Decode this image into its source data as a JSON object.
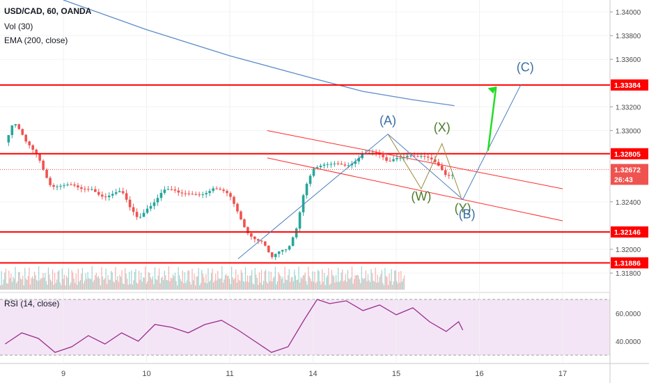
{
  "header": {
    "symbol_line": "USD/CAD, 60, OANDA",
    "vol_line": "Vol (30)",
    "ema_line": "EMA (200, close)",
    "rsi_line": "RSI (14, close)"
  },
  "chart_data": [
    {
      "type": "candlestick",
      "title": "USD/CAD, 60, OANDA",
      "y_range": [
        1.3166,
        1.341
      ],
      "y_ticks": [
        "1.34000",
        "1.33800",
        "1.33600",
        "1.33200",
        "1.33000",
        "1.32400",
        "1.32000",
        "1.31800"
      ],
      "x_ticks": [
        "9",
        "10",
        "11",
        "14",
        "15",
        "16",
        "17"
      ],
      "price_labels": [
        {
          "text": "1.33384",
          "value": 1.33384,
          "color": "#ff0000"
        },
        {
          "text": "1.32805",
          "value": 1.32805,
          "color": "#ff0000"
        },
        {
          "text": "1.32672",
          "value": 1.32672,
          "color": "#ef5350"
        },
        {
          "text": "26:43",
          "value": 1.3259,
          "color": "#ef5350"
        },
        {
          "text": "1.32146",
          "value": 1.32146,
          "color": "#ff0000"
        },
        {
          "text": "1.31886",
          "value": 1.31886,
          "color": "#ff0000"
        }
      ],
      "horizontal_levels": [
        1.33384,
        1.32805,
        1.32146,
        1.31886
      ],
      "current_price": 1.32672,
      "ema_200": [
        {
          "x": 0.0,
          "y": 1.341
        },
        {
          "x": 1.0,
          "y": 1.3385
        },
        {
          "x": 2.0,
          "y": 1.3363
        },
        {
          "x": 3.0,
          "y": 1.3344
        },
        {
          "x": 3.6,
          "y": 1.3333
        },
        {
          "x": 4.2,
          "y": 1.3326
        },
        {
          "x": 4.7,
          "y": 1.3321
        }
      ],
      "price_path": [
        {
          "x": -0.7,
          "y": 1.329
        },
        {
          "x": -0.6,
          "y": 1.3305
        },
        {
          "x": -0.45,
          "y": 1.3287
        },
        {
          "x": -0.3,
          "y": 1.328
        },
        {
          "x": -0.15,
          "y": 1.3257
        },
        {
          "x": 0.0,
          "y": 1.3252
        },
        {
          "x": 0.2,
          "y": 1.3248
        },
        {
          "x": 0.35,
          "y": 1.3254
        },
        {
          "x": 0.5,
          "y": 1.3247
        },
        {
          "x": 0.7,
          "y": 1.3245
        },
        {
          "x": 0.8,
          "y": 1.3232
        },
        {
          "x": 0.9,
          "y": 1.3226
        },
        {
          "x": 1.0,
          "y": 1.3238
        },
        {
          "x": 1.2,
          "y": 1.325
        },
        {
          "x": 1.4,
          "y": 1.3243
        },
        {
          "x": 1.6,
          "y": 1.325
        },
        {
          "x": 1.8,
          "y": 1.3252
        },
        {
          "x": 2.0,
          "y": 1.3241
        },
        {
          "x": 2.2,
          "y": 1.3218
        },
        {
          "x": 2.4,
          "y": 1.3208
        },
        {
          "x": 2.5,
          "y": 1.319
        },
        {
          "x": 2.7,
          "y": 1.3198
        },
        {
          "x": 2.8,
          "y": 1.322
        },
        {
          "x": 2.9,
          "y": 1.3256
        },
        {
          "x": 3.0,
          "y": 1.327
        },
        {
          "x": 3.2,
          "y": 1.3267
        },
        {
          "x": 3.4,
          "y": 1.3272
        },
        {
          "x": 3.6,
          "y": 1.3284
        },
        {
          "x": 3.75,
          "y": 1.3278
        },
        {
          "x": 3.9,
          "y": 1.327
        },
        {
          "x": 4.0,
          "y": 1.3278
        },
        {
          "x": 4.15,
          "y": 1.3284
        },
        {
          "x": 4.3,
          "y": 1.3278
        },
        {
          "x": 4.45,
          "y": 1.327
        },
        {
          "x": 4.6,
          "y": 1.3262
        },
        {
          "x": 4.7,
          "y": 1.3267
        }
      ],
      "elliott_wave_labels": [
        "(A)",
        "(X)",
        "(W)",
        "(Y)",
        "(B)",
        "(C)"
      ],
      "rsi": {
        "y_ticks": [
          "60.0000",
          "40.0000"
        ],
        "levels": [
          70,
          30
        ],
        "y_range": [
          25,
          75
        ],
        "values": [
          {
            "x": -0.7,
            "y": 38
          },
          {
            "x": -0.5,
            "y": 46
          },
          {
            "x": -0.3,
            "y": 42
          },
          {
            "x": -0.1,
            "y": 32
          },
          {
            "x": 0.1,
            "y": 36
          },
          {
            "x": 0.3,
            "y": 44
          },
          {
            "x": 0.5,
            "y": 38
          },
          {
            "x": 0.7,
            "y": 46
          },
          {
            "x": 0.9,
            "y": 40
          },
          {
            "x": 1.1,
            "y": 52
          },
          {
            "x": 1.3,
            "y": 50
          },
          {
            "x": 1.5,
            "y": 46
          },
          {
            "x": 1.7,
            "y": 52
          },
          {
            "x": 1.9,
            "y": 55
          },
          {
            "x": 2.1,
            "y": 48
          },
          {
            "x": 2.3,
            "y": 40
          },
          {
            "x": 2.5,
            "y": 32
          },
          {
            "x": 2.7,
            "y": 36
          },
          {
            "x": 2.9,
            "y": 56
          },
          {
            "x": 3.05,
            "y": 70
          },
          {
            "x": 3.2,
            "y": 67
          },
          {
            "x": 3.4,
            "y": 69
          },
          {
            "x": 3.6,
            "y": 62
          },
          {
            "x": 3.8,
            "y": 66
          },
          {
            "x": 4.0,
            "y": 59
          },
          {
            "x": 4.2,
            "y": 64
          },
          {
            "x": 4.4,
            "y": 54
          },
          {
            "x": 4.6,
            "y": 47
          },
          {
            "x": 4.75,
            "y": 54
          },
          {
            "x": 4.8,
            "y": 48
          }
        ]
      }
    }
  ]
}
